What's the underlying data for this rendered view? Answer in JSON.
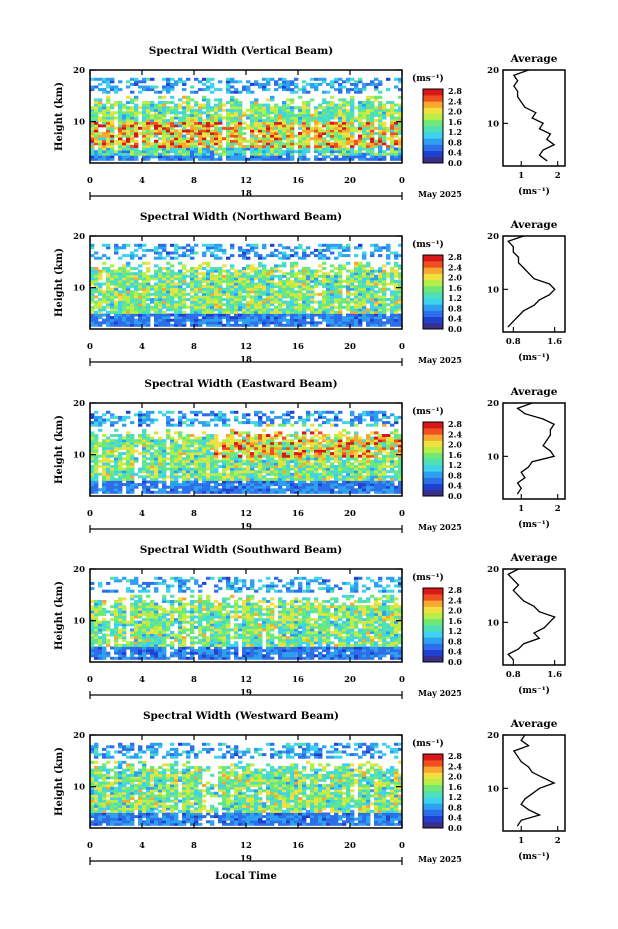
{
  "figure": {
    "xlabel": "Local Time",
    "ylabel": "Height (km)",
    "month_label": "May 2025",
    "colorbar_unit": "(ms⁻¹)",
    "avg_title": "Average",
    "avg_unit": "(ms⁻¹)"
  },
  "panels": [
    {
      "title": "Spectral Width (Vertical Beam)",
      "date_label": "18"
    },
    {
      "title": "Spectral Width (Northward Beam)",
      "date_label": "18"
    },
    {
      "title": "Spectral Width (Eastward Beam)",
      "date_label": "19"
    },
    {
      "title": "Spectral Width (Southward Beam)",
      "date_label": "19"
    },
    {
      "title": "Spectral Width (Westward Beam)",
      "date_label": "19"
    }
  ],
  "chart_data": [
    {
      "type": "heatmap",
      "title": "Spectral Width (Vertical Beam)",
      "xlabel": "",
      "ylabel": "Height (km)",
      "xlim": [
        0,
        24
      ],
      "ylim": [
        2,
        20
      ],
      "xticks": [
        "0",
        "4",
        "8",
        "12",
        "16",
        "20",
        "0"
      ],
      "yticks": [
        "20",
        "10"
      ],
      "colorbar": {
        "unit": "(ms⁻¹)",
        "ticks": [
          "0.0",
          "0.4",
          "0.8",
          "1.2",
          "1.6",
          "2.0",
          "2.4",
          "2.8"
        ],
        "range": [
          0,
          3.0
        ]
      },
      "average_profile": {
        "title": "Average",
        "xlabel": "(ms⁻¹)",
        "xticks": [
          "1",
          "2"
        ],
        "xlim": [
          0.5,
          2.2
        ],
        "yticks": [
          "20",
          "10"
        ],
        "points": [
          [
            1.7,
            3
          ],
          [
            1.5,
            4
          ],
          [
            1.6,
            5
          ],
          [
            1.9,
            6
          ],
          [
            1.7,
            7
          ],
          [
            1.8,
            8
          ],
          [
            1.5,
            9
          ],
          [
            1.6,
            10
          ],
          [
            1.3,
            11
          ],
          [
            1.4,
            12
          ],
          [
            1.1,
            13
          ],
          [
            1.0,
            14
          ],
          [
            0.9,
            15
          ],
          [
            0.9,
            16
          ],
          [
            0.8,
            17
          ],
          [
            0.9,
            18
          ],
          [
            0.8,
            19
          ],
          [
            1.2,
            20
          ]
        ]
      }
    },
    {
      "type": "heatmap",
      "title": "Spectral Width (Northward Beam)",
      "xlabel": "",
      "ylabel": "Height (km)",
      "xlim": [
        0,
        24
      ],
      "ylim": [
        2,
        20
      ],
      "xticks": [
        "0",
        "4",
        "8",
        "12",
        "16",
        "20",
        "0"
      ],
      "yticks": [
        "20",
        "10"
      ],
      "colorbar": {
        "unit": "(ms⁻¹)",
        "ticks": [
          "0.0",
          "0.4",
          "0.8",
          "1.2",
          "1.6",
          "2.0",
          "2.4",
          "2.8"
        ],
        "range": [
          0,
          3.0
        ]
      },
      "average_profile": {
        "title": "Average",
        "xlabel": "(ms⁻¹)",
        "xticks": [
          "0.8",
          "1.6"
        ],
        "xlim": [
          0.6,
          1.8
        ],
        "yticks": [
          "20",
          "10"
        ],
        "points": [
          [
            0.7,
            3
          ],
          [
            0.8,
            4
          ],
          [
            0.9,
            5
          ],
          [
            1.0,
            6
          ],
          [
            1.2,
            7
          ],
          [
            1.3,
            8
          ],
          [
            1.5,
            9
          ],
          [
            1.6,
            10
          ],
          [
            1.5,
            11
          ],
          [
            1.2,
            12
          ],
          [
            1.1,
            13
          ],
          [
            1.0,
            14
          ],
          [
            0.9,
            15
          ],
          [
            0.9,
            16
          ],
          [
            0.8,
            17
          ],
          [
            0.8,
            18
          ],
          [
            0.7,
            19
          ],
          [
            1.0,
            20
          ]
        ]
      }
    },
    {
      "type": "heatmap",
      "title": "Spectral Width (Eastward Beam)",
      "xlabel": "",
      "ylabel": "Height (km)",
      "xlim": [
        0,
        24
      ],
      "ylim": [
        2,
        20
      ],
      "xticks": [
        "0",
        "4",
        "8",
        "12",
        "16",
        "20",
        "0"
      ],
      "yticks": [
        "20",
        "10"
      ],
      "colorbar": {
        "unit": "(ms⁻¹)",
        "ticks": [
          "0.0",
          "0.4",
          "0.8",
          "1.2",
          "1.6",
          "2.0",
          "2.4",
          "2.8"
        ],
        "range": [
          0,
          3.0
        ]
      },
      "average_profile": {
        "title": "Average",
        "xlabel": "(ms⁻¹)",
        "xticks": [
          "1",
          "2"
        ],
        "xlim": [
          0.5,
          2.2
        ],
        "yticks": [
          "20",
          "10"
        ],
        "points": [
          [
            0.9,
            3
          ],
          [
            1.0,
            4
          ],
          [
            0.9,
            5
          ],
          [
            1.1,
            6
          ],
          [
            1.0,
            7
          ],
          [
            1.2,
            8
          ],
          [
            1.3,
            9
          ],
          [
            1.9,
            10
          ],
          [
            1.8,
            11
          ],
          [
            1.6,
            12
          ],
          [
            1.7,
            13
          ],
          [
            1.8,
            14
          ],
          [
            1.8,
            15
          ],
          [
            1.9,
            16
          ],
          [
            1.6,
            17
          ],
          [
            1.1,
            18
          ],
          [
            0.9,
            19
          ],
          [
            1.3,
            20
          ]
        ]
      }
    },
    {
      "type": "heatmap",
      "title": "Spectral Width (Southward Beam)",
      "xlabel": "",
      "ylabel": "Height (km)",
      "xlim": [
        0,
        24
      ],
      "ylim": [
        2,
        20
      ],
      "xticks": [
        "0",
        "4",
        "8",
        "12",
        "16",
        "20",
        "0"
      ],
      "yticks": [
        "20",
        "10"
      ],
      "colorbar": {
        "unit": "(ms⁻¹)",
        "ticks": [
          "0.0",
          "0.4",
          "0.8",
          "1.2",
          "1.6",
          "2.0",
          "2.4",
          "2.8"
        ],
        "range": [
          0,
          3.0
        ]
      },
      "average_profile": {
        "title": "Average",
        "xlabel": "(ms⁻¹)",
        "xticks": [
          "0.8",
          "1.6"
        ],
        "xlim": [
          0.6,
          1.8
        ],
        "yticks": [
          "20",
          "10"
        ],
        "points": [
          [
            0.8,
            3
          ],
          [
            0.7,
            4
          ],
          [
            0.9,
            5
          ],
          [
            1.0,
            6
          ],
          [
            1.3,
            7
          ],
          [
            1.2,
            8
          ],
          [
            1.4,
            9
          ],
          [
            1.5,
            10
          ],
          [
            1.6,
            11
          ],
          [
            1.3,
            12
          ],
          [
            1.2,
            13
          ],
          [
            1.0,
            14
          ],
          [
            0.9,
            15
          ],
          [
            0.8,
            16
          ],
          [
            0.9,
            17
          ],
          [
            0.8,
            18
          ],
          [
            0.7,
            19
          ],
          [
            0.9,
            20
          ]
        ]
      }
    },
    {
      "type": "heatmap",
      "title": "Spectral Width (Westward Beam)",
      "xlabel": "Local Time",
      "ylabel": "Height (km)",
      "xlim": [
        0,
        24
      ],
      "ylim": [
        2,
        20
      ],
      "xticks": [
        "0",
        "4",
        "8",
        "12",
        "16",
        "20",
        "0"
      ],
      "yticks": [
        "20",
        "10"
      ],
      "colorbar": {
        "unit": "(ms⁻¹)",
        "ticks": [
          "0.0",
          "0.4",
          "0.8",
          "1.2",
          "1.6",
          "2.0",
          "2.4",
          "2.8"
        ],
        "range": [
          0,
          3.0
        ]
      },
      "average_profile": {
        "title": "Average",
        "xlabel": "(ms⁻¹)",
        "xticks": [
          "1",
          "2"
        ],
        "xlim": [
          0.5,
          2.2
        ],
        "yticks": [
          "20",
          "10"
        ],
        "points": [
          [
            0.9,
            3
          ],
          [
            1.0,
            4
          ],
          [
            1.5,
            5
          ],
          [
            1.2,
            6
          ],
          [
            1.0,
            7
          ],
          [
            1.1,
            8
          ],
          [
            1.3,
            9
          ],
          [
            1.5,
            10
          ],
          [
            1.9,
            11
          ],
          [
            1.6,
            12
          ],
          [
            1.3,
            13
          ],
          [
            1.2,
            14
          ],
          [
            1.0,
            15
          ],
          [
            0.9,
            16
          ],
          [
            0.8,
            17
          ],
          [
            1.2,
            18
          ],
          [
            1.0,
            19
          ],
          [
            1.1,
            20
          ]
        ]
      }
    }
  ]
}
